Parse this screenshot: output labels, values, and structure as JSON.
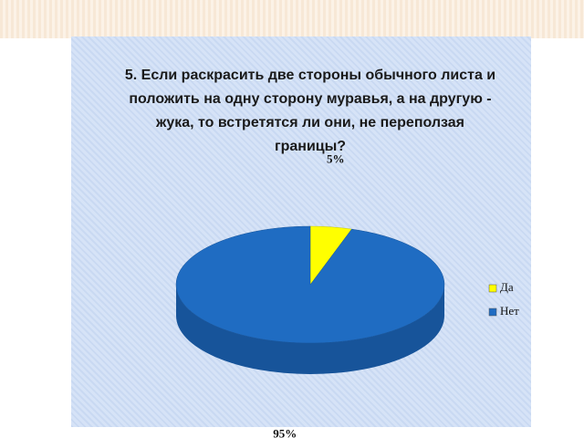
{
  "chart_data": {
    "type": "pie3d",
    "title": "5. Если раскрасить две стороны обычного листа и положить на одну сторону муравья, а на другую - жука, то встретятся ли они, не переползая границы?",
    "categories": [
      "Да",
      "Нет"
    ],
    "values": [
      5,
      95
    ],
    "value_labels": [
      "5%",
      "95%"
    ],
    "colors": [
      "#ffff00",
      "#1f6cc2"
    ],
    "legend": "right"
  }
}
